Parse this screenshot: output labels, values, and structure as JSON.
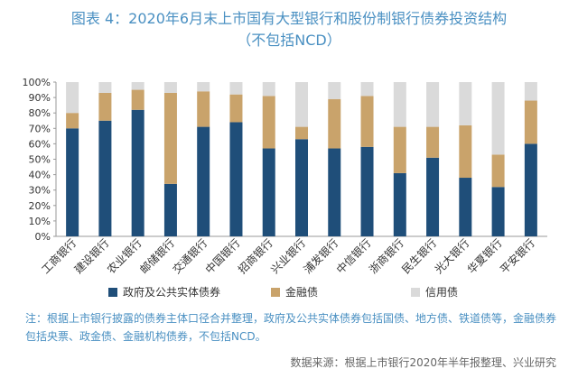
{
  "header": {
    "title_line1": "图表 4：2020年6月末上市国有大型银行和股份制银行债券投资结构",
    "title_line2": "（不包括NCD）"
  },
  "chart_data": {
    "type": "bar",
    "stacked": true,
    "categories": [
      "工商银行",
      "建设银行",
      "农业银行",
      "邮储银行",
      "交通银行",
      "中国银行",
      "招商银行",
      "兴业银行",
      "浦发银行",
      "中信银行",
      "浙商银行",
      "民生银行",
      "光大银行",
      "华夏银行",
      "平安银行"
    ],
    "series": [
      {
        "name": "政府及公共实体债券",
        "color": "#1f4e79",
        "values": [
          70,
          75,
          82,
          34,
          71,
          74,
          57,
          63,
          57,
          58,
          41,
          51,
          38,
          32,
          60
        ]
      },
      {
        "name": "金融债",
        "color": "#c9a36b",
        "values": [
          10,
          18,
          13,
          59,
          23,
          18,
          34,
          8,
          32,
          33,
          30,
          20,
          34,
          21,
          28
        ]
      },
      {
        "name": "信用债",
        "color": "#dadada",
        "values": [
          20,
          7,
          5,
          7,
          6,
          8,
          9,
          29,
          11,
          9,
          29,
          29,
          28,
          47,
          12
        ]
      }
    ],
    "y_ticks": [
      "0%",
      "10%",
      "20%",
      "30%",
      "40%",
      "50%",
      "60%",
      "70%",
      "80%",
      "90%",
      "100%"
    ],
    "ylim": [
      0,
      100
    ],
    "grid": false,
    "legend_position": "bottom"
  },
  "footer": {
    "note": "注：根据上市银行披露的债券主体口径合并整理，政府及公共实体债券包括国债、地方债、铁道债等，金融债券包括央票、政金债、金融机构债券，不包括NCD。",
    "source": "数据来源：根据上市银行2020年半年报整理、兴业研究"
  }
}
